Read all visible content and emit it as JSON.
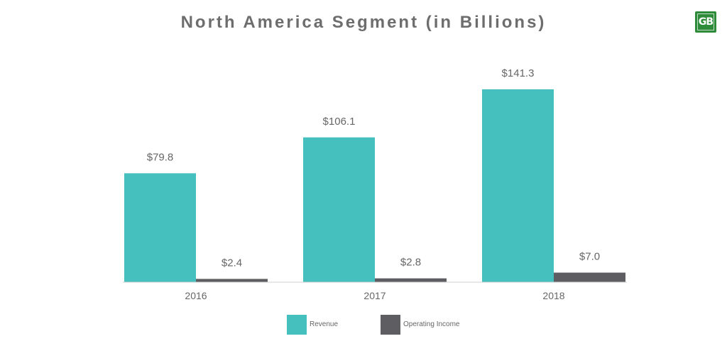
{
  "chart_data": {
    "type": "bar",
    "title": "North America Segment (in Billions)",
    "categories": [
      "2016",
      "2017",
      "2018"
    ],
    "series": [
      {
        "name": "Revenue",
        "values": [
          79.8,
          106.1,
          141.3
        ],
        "labels": [
          "$79.8",
          "$106.1",
          "$141.3"
        ],
        "color": "#45c0bf"
      },
      {
        "name": "Operating Income",
        "values": [
          2.4,
          2.8,
          7.0
        ],
        "labels": [
          "$2.4",
          "$2.8",
          "$7.0"
        ],
        "color": "#5e5e62"
      }
    ],
    "ylim": [
      0,
      141.3
    ],
    "grid": false,
    "legend_position": "bottom",
    "baseline_color": "#d0d0d0",
    "text_color": "#666666"
  },
  "logo": {
    "text": "GB",
    "color": "#2e8b3a"
  }
}
